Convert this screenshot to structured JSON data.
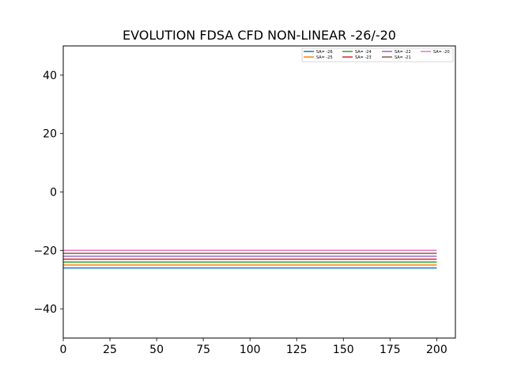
{
  "chart_data": {
    "type": "line",
    "title": "EVOLUTION FDSA CFD NON-LINEAR -26/-20",
    "xlabel": "",
    "ylabel": "",
    "xlim": [
      0,
      210
    ],
    "ylim": [
      -50,
      50
    ],
    "xticks": [
      0,
      25,
      50,
      75,
      100,
      125,
      150,
      175,
      200
    ],
    "xtick_labels": [
      "0",
      "25",
      "50",
      "75",
      "100",
      "125",
      "150",
      "175",
      "200"
    ],
    "yticks": [
      -40,
      -20,
      0,
      20,
      40
    ],
    "ytick_labels": [
      "−40",
      "−20",
      "0",
      "20",
      "40"
    ],
    "grid": false,
    "legend": {
      "placement": "top-right",
      "columns": 4
    },
    "series": [
      {
        "name": "SA= -26",
        "color": "#1f77b4",
        "x": [
          0,
          200
        ],
        "y": [
          -26,
          -26
        ]
      },
      {
        "name": "SA= -25",
        "color": "#ff7f0e",
        "x": [
          0,
          200
        ],
        "y": [
          -25,
          -25
        ]
      },
      {
        "name": "SA= -24",
        "color": "#2ca02c",
        "x": [
          0,
          200
        ],
        "y": [
          -24,
          -24
        ]
      },
      {
        "name": "SA= -23",
        "color": "#d62728",
        "x": [
          0,
          200
        ],
        "y": [
          -23,
          -23
        ]
      },
      {
        "name": "SA= -22",
        "color": "#9467bd",
        "x": [
          0,
          200
        ],
        "y": [
          -22,
          -22
        ]
      },
      {
        "name": "SA= -21",
        "color": "#8c564b",
        "x": [
          0,
          200
        ],
        "y": [
          -21,
          -21
        ]
      },
      {
        "name": "SA= -20",
        "color": "#e377c2",
        "x": [
          0,
          200
        ],
        "y": [
          -20,
          -20
        ]
      }
    ]
  }
}
